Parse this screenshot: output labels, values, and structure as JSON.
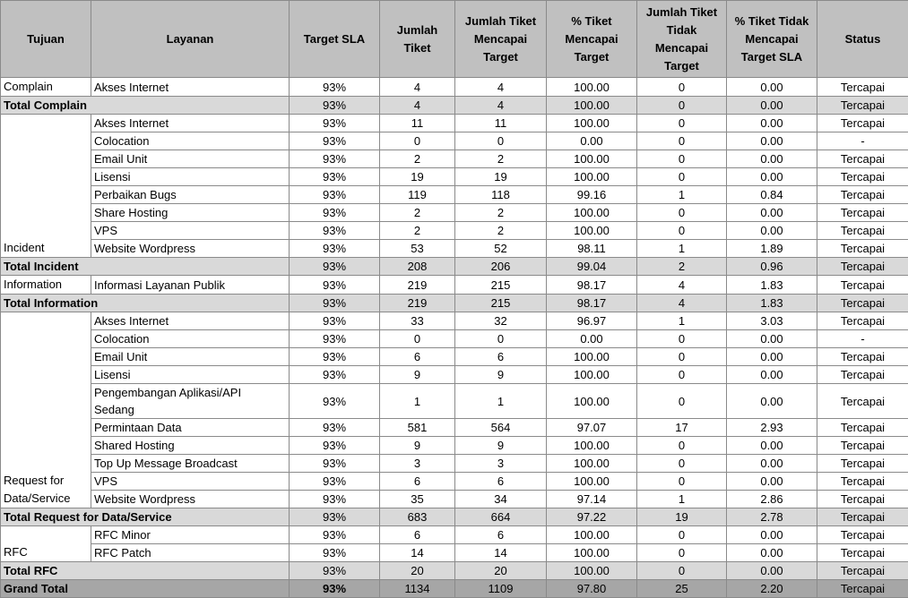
{
  "header": [
    "Tujuan",
    "Layanan",
    "Target SLA",
    "Jumlah Tiket",
    "Jumlah Tiket Mencapai Target",
    "% Tiket Mencapai Target",
    "Jumlah Tiket Tidak Mencapai Target",
    "% Tiket Tidak Mencapai Target SLA",
    "Status"
  ],
  "groups": [
    {
      "tujuan": "Complain",
      "rows": [
        [
          "Akses Internet",
          "93%",
          "4",
          "4",
          "100.00",
          "0",
          "0.00",
          "Tercapai"
        ]
      ],
      "total": [
        "Total Complain",
        "93%",
        "4",
        "4",
        "100.00",
        "0",
        "0.00",
        "Tercapai"
      ]
    },
    {
      "tujuan": "Incident",
      "rows": [
        [
          "Akses Internet",
          "93%",
          "11",
          "11",
          "100.00",
          "0",
          "0.00",
          "Tercapai"
        ],
        [
          "Colocation",
          "93%",
          "0",
          "0",
          "0.00",
          "0",
          "0.00",
          "-"
        ],
        [
          "Email Unit",
          "93%",
          "2",
          "2",
          "100.00",
          "0",
          "0.00",
          "Tercapai"
        ],
        [
          "Lisensi",
          "93%",
          "19",
          "19",
          "100.00",
          "0",
          "0.00",
          "Tercapai"
        ],
        [
          "Perbaikan Bugs",
          "93%",
          "119",
          "118",
          "99.16",
          "1",
          "0.84",
          "Tercapai"
        ],
        [
          "Share Hosting",
          "93%",
          "2",
          "2",
          "100.00",
          "0",
          "0.00",
          "Tercapai"
        ],
        [
          "VPS",
          "93%",
          "2",
          "2",
          "100.00",
          "0",
          "0.00",
          "Tercapai"
        ],
        [
          "Website Wordpress",
          "93%",
          "53",
          "52",
          "98.11",
          "1",
          "1.89",
          "Tercapai"
        ]
      ],
      "total": [
        "Total Incident",
        "93%",
        "208",
        "206",
        "99.04",
        "2",
        "0.96",
        "Tercapai"
      ]
    },
    {
      "tujuan": "Information",
      "rows": [
        [
          "Informasi Layanan Publik",
          "93%",
          "219",
          "215",
          "98.17",
          "4",
          "1.83",
          "Tercapai"
        ]
      ],
      "total": [
        "Total Information",
        "93%",
        "219",
        "215",
        "98.17",
        "4",
        "1.83",
        "Tercapai"
      ]
    },
    {
      "tujuan": "Request for Data/Service",
      "rows": [
        [
          "Akses Internet",
          "93%",
          "33",
          "32",
          "96.97",
          "1",
          "3.03",
          "Tercapai"
        ],
        [
          "Colocation",
          "93%",
          "0",
          "0",
          "0.00",
          "0",
          "0.00",
          "-"
        ],
        [
          "Email Unit",
          "93%",
          "6",
          "6",
          "100.00",
          "0",
          "0.00",
          "Tercapai"
        ],
        [
          "Lisensi",
          "93%",
          "9",
          "9",
          "100.00",
          "0",
          "0.00",
          "Tercapai"
        ],
        [
          "Pengembangan Aplikasi/API Sedang",
          "93%",
          "1",
          "1",
          "100.00",
          "0",
          "0.00",
          "Tercapai"
        ],
        [
          "Permintaan Data",
          "93%",
          "581",
          "564",
          "97.07",
          "17",
          "2.93",
          "Tercapai"
        ],
        [
          "Shared Hosting",
          "93%",
          "9",
          "9",
          "100.00",
          "0",
          "0.00",
          "Tercapai"
        ],
        [
          "Top Up Message Broadcast",
          "93%",
          "3",
          "3",
          "100.00",
          "0",
          "0.00",
          "Tercapai"
        ],
        [
          "VPS",
          "93%",
          "6",
          "6",
          "100.00",
          "0",
          "0.00",
          "Tercapai"
        ],
        [
          "Website Wordpress",
          "93%",
          "35",
          "34",
          "97.14",
          "1",
          "2.86",
          "Tercapai"
        ]
      ],
      "total": [
        "Total Request for Data/Service",
        "93%",
        "683",
        "664",
        "97.22",
        "19",
        "2.78",
        "Tercapai"
      ]
    },
    {
      "tujuan": "RFC",
      "rows": [
        [
          "RFC Minor",
          "93%",
          "6",
          "6",
          "100.00",
          "0",
          "0.00",
          "Tercapai"
        ],
        [
          "RFC Patch",
          "93%",
          "14",
          "14",
          "100.00",
          "0",
          "0.00",
          "Tercapai"
        ]
      ],
      "total": [
        "Total RFC",
        "93%",
        "20",
        "20",
        "100.00",
        "0",
        "0.00",
        "Tercapai"
      ]
    }
  ],
  "grand_total": [
    "Grand Total",
    "93%",
    "1134",
    "1109",
    "97.80",
    "25",
    "2.20",
    "Tercapai"
  ]
}
